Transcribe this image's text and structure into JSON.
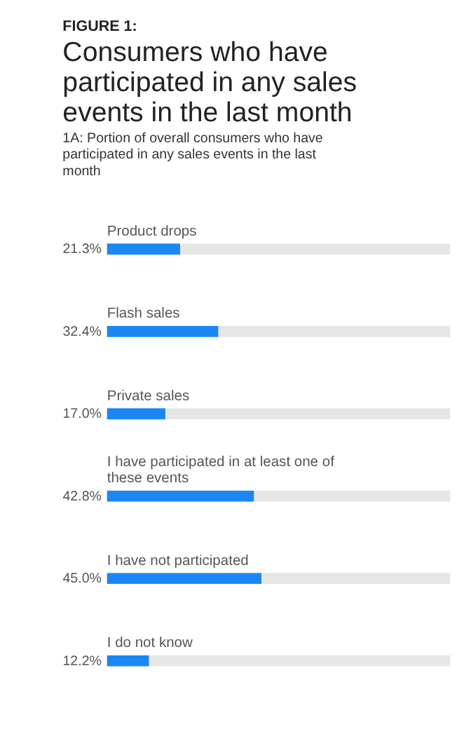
{
  "chart_data": {
    "type": "bar",
    "orientation": "horizontal",
    "title": "Consumers who have participated in any sales events in the last month",
    "subtitle": "1A: Portion of overall consumers who have participated in any sales events in the last month",
    "annotations": [
      "FIGURE 1:"
    ],
    "categories": [
      "Product drops",
      "Flash sales",
      "Private sales",
      "I have participated in at least one of these events",
      "I have not participated",
      "I do not know"
    ],
    "values": [
      21.3,
      32.4,
      17.0,
      42.8,
      45.0,
      12.2
    ],
    "value_labels": [
      "21.3%",
      "32.4%",
      "17.0%",
      "42.8%",
      "45.0%",
      "12.2%"
    ],
    "color": "#1a87f5",
    "xlim": [
      0,
      100
    ],
    "tick_labels": false
  }
}
